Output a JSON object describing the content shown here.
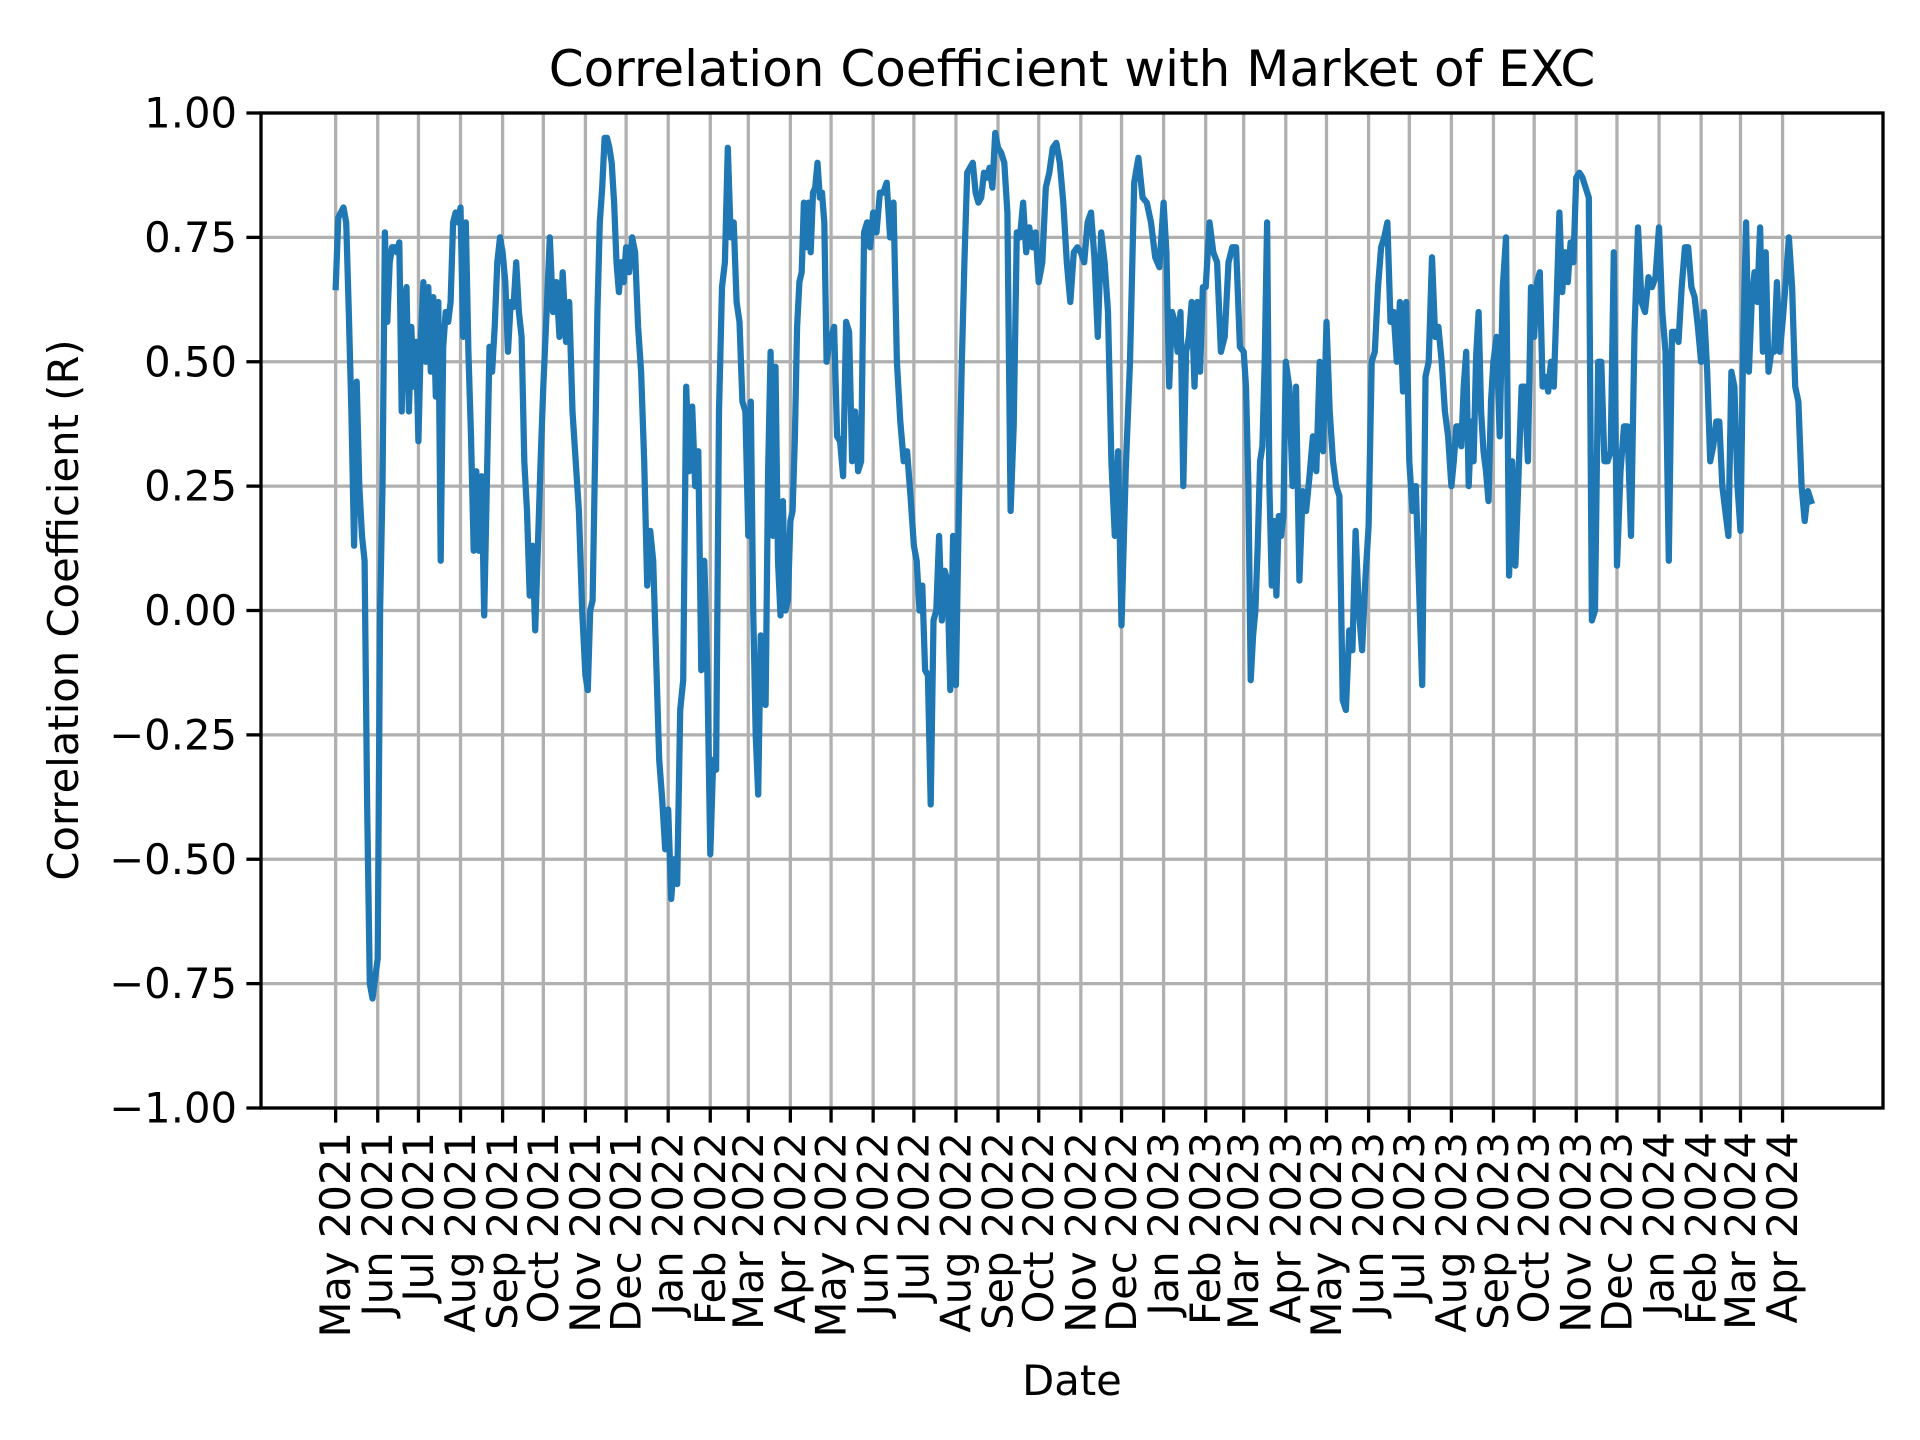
{
  "chart_data": {
    "type": "line",
    "title": "Correlation Coefficient with Market of EXC",
    "xlabel": "Date",
    "ylabel": "Correlation Coefficient (R)",
    "xlim": [
      "2021-03-07",
      "2024-06-14"
    ],
    "ylim": [
      -1.0,
      1.0
    ],
    "grid": true,
    "line_color": "#1f77b4",
    "grid_color": "#b0b0b0",
    "y_ticks": [
      {
        "value": 1.0,
        "label": "1.00"
      },
      {
        "value": 0.75,
        "label": "0.75"
      },
      {
        "value": 0.5,
        "label": "0.50"
      },
      {
        "value": 0.25,
        "label": "0.25"
      },
      {
        "value": 0.0,
        "label": "0.00"
      },
      {
        "value": -0.25,
        "label": "−0.25"
      },
      {
        "value": -0.5,
        "label": "−0.50"
      },
      {
        "value": -0.75,
        "label": "−0.75"
      },
      {
        "value": -1.0,
        "label": "−1.00"
      }
    ],
    "x_ticks": [
      {
        "date": "2021-05-01",
        "label": "May 2021"
      },
      {
        "date": "2021-06-01",
        "label": "Jun 2021"
      },
      {
        "date": "2021-07-01",
        "label": "Jul 2021"
      },
      {
        "date": "2021-08-01",
        "label": "Aug 2021"
      },
      {
        "date": "2021-09-01",
        "label": "Sep 2021"
      },
      {
        "date": "2021-10-01",
        "label": "Oct 2021"
      },
      {
        "date": "2021-11-01",
        "label": "Nov 2021"
      },
      {
        "date": "2021-12-01",
        "label": "Dec 2021"
      },
      {
        "date": "2022-01-01",
        "label": "Jan 2022"
      },
      {
        "date": "2022-02-01",
        "label": "Feb 2022"
      },
      {
        "date": "2022-03-01",
        "label": "Mar 2022"
      },
      {
        "date": "2022-04-01",
        "label": "Apr 2022"
      },
      {
        "date": "2022-05-01",
        "label": "May 2022"
      },
      {
        "date": "2022-06-01",
        "label": "Jun 2022"
      },
      {
        "date": "2022-07-01",
        "label": "Jul 2022"
      },
      {
        "date": "2022-08-01",
        "label": "Aug 2022"
      },
      {
        "date": "2022-09-01",
        "label": "Sep 2022"
      },
      {
        "date": "2022-10-01",
        "label": "Oct 2022"
      },
      {
        "date": "2022-11-01",
        "label": "Nov 2022"
      },
      {
        "date": "2022-12-01",
        "label": "Dec 2022"
      },
      {
        "date": "2023-01-01",
        "label": "Jan 2023"
      },
      {
        "date": "2023-02-01",
        "label": "Feb 2023"
      },
      {
        "date": "2023-03-01",
        "label": "Mar 2023"
      },
      {
        "date": "2023-04-01",
        "label": "Apr 2023"
      },
      {
        "date": "2023-05-01",
        "label": "May 2023"
      },
      {
        "date": "2023-06-01",
        "label": "Jun 2023"
      },
      {
        "date": "2023-07-01",
        "label": "Jul 2023"
      },
      {
        "date": "2023-08-01",
        "label": "Aug 2023"
      },
      {
        "date": "2023-09-01",
        "label": "Sep 2023"
      },
      {
        "date": "2023-10-01",
        "label": "Oct 2023"
      },
      {
        "date": "2023-11-01",
        "label": "Nov 2023"
      },
      {
        "date": "2023-12-01",
        "label": "Dec 2023"
      },
      {
        "date": "2024-01-01",
        "label": "Jan 2024"
      },
      {
        "date": "2024-02-01",
        "label": "Feb 2024"
      },
      {
        "date": "2024-03-01",
        "label": "Mar 2024"
      },
      {
        "date": "2024-04-01",
        "label": "Apr 2024"
      }
    ],
    "series": [
      {
        "last_date": "2024-04-22",
        "monthly_values": [
          {
            "month": "2021-05",
            "values": [
              0.65,
              0.79,
              0.8,
              0.81,
              0.78,
              0.6,
              0.4,
              0.13,
              0.46,
              0.25,
              0.15,
              0.1,
              -0.4,
              -0.75,
              -0.78,
              -0.74
            ]
          },
          {
            "month": "2021-06",
            "values": [
              -0.7,
              0.0,
              0.25,
              0.76,
              0.58,
              0.7,
              0.73,
              0.73,
              0.72,
              0.74,
              0.4,
              0.6,
              0.65,
              0.4,
              0.57,
              0.45,
              0.54
            ]
          },
          {
            "month": "2021-07",
            "values": [
              0.34,
              0.55,
              0.66,
              0.5,
              0.65,
              0.48,
              0.63,
              0.43,
              0.62,
              0.1,
              0.53,
              0.6,
              0.58,
              0.62,
              0.78,
              0.8,
              0.78
            ]
          },
          {
            "month": "2021-08",
            "values": [
              0.81,
              0.55,
              0.78,
              0.52,
              0.35,
              0.12,
              0.28,
              0.12,
              0.27,
              -0.01,
              0.25,
              0.53,
              0.48,
              0.57,
              0.7,
              0.75
            ]
          },
          {
            "month": "2021-09",
            "values": [
              0.72,
              0.66,
              0.52,
              0.62,
              0.61,
              0.7,
              0.6,
              0.55,
              0.3,
              0.2,
              0.03,
              0.13,
              -0.04,
              0.13,
              0.3
            ]
          },
          {
            "month": "2021-10",
            "values": [
              0.45,
              0.6,
              0.75,
              0.6,
              0.66,
              0.55,
              0.68,
              0.54,
              0.62,
              0.4,
              0.3,
              0.2,
              0.0
            ]
          },
          {
            "month": "2021-11",
            "values": [
              -0.13,
              -0.16,
              0.0,
              0.02,
              0.3,
              0.6,
              0.78,
              0.85,
              0.95,
              0.95,
              0.93,
              0.9,
              0.82,
              0.7,
              0.64,
              0.7,
              0.66
            ]
          },
          {
            "month": "2021-12",
            "values": [
              0.73,
              0.68,
              0.75,
              0.72,
              0.57,
              0.48,
              0.3,
              0.05,
              0.16,
              0.1,
              -0.1,
              -0.3,
              -0.38,
              -0.48
            ]
          },
          {
            "month": "2022-01",
            "values": [
              -0.4,
              -0.58,
              -0.5,
              -0.55,
              -0.2,
              -0.14,
              0.45,
              0.28,
              0.41,
              0.25,
              0.32,
              -0.12,
              0.1,
              -0.12
            ]
          },
          {
            "month": "2022-02",
            "values": [
              -0.49,
              -0.3,
              -0.32,
              0.4,
              0.65,
              0.7,
              0.93,
              0.75,
              0.78,
              0.62,
              0.58,
              0.42,
              0.4
            ]
          },
          {
            "month": "2022-03",
            "values": [
              0.15,
              0.42,
              0.0,
              -0.25,
              -0.37,
              -0.05,
              -0.08,
              -0.19,
              0.28,
              0.52,
              0.15,
              0.49,
              0.1,
              -0.01,
              0.22,
              0.0,
              0.02
            ]
          },
          {
            "month": "2022-04",
            "values": [
              0.18,
              0.2,
              0.35,
              0.57,
              0.66,
              0.68,
              0.82,
              0.73,
              0.82,
              0.72,
              0.84,
              0.85,
              0.9,
              0.83,
              0.84,
              0.78,
              0.5,
              0.53
            ]
          },
          {
            "month": "2022-05",
            "values": [
              0.55,
              0.57,
              0.35,
              0.34,
              0.27,
              0.58,
              0.56,
              0.3,
              0.4,
              0.28,
              0.3,
              0.76,
              0.78,
              0.73
            ]
          },
          {
            "month": "2022-06",
            "values": [
              0.8,
              0.76,
              0.84,
              0.84,
              0.86,
              0.75,
              0.82,
              0.5,
              0.38,
              0.3,
              0.32,
              0.23
            ]
          },
          {
            "month": "2022-07",
            "values": [
              0.13,
              0.1,
              0.0,
              0.05,
              -0.12,
              -0.13,
              -0.39,
              -0.02,
              0.0,
              0.15,
              -0.02,
              0.08,
              0.06,
              -0.16,
              0.15
            ]
          },
          {
            "month": "2022-08",
            "values": [
              -0.15,
              0.2,
              0.48,
              0.7,
              0.88,
              0.89,
              0.9,
              0.84,
              0.82,
              0.83,
              0.88,
              0.87,
              0.89,
              0.85,
              0.96
            ]
          },
          {
            "month": "2022-09",
            "values": [
              0.93,
              0.92,
              0.9,
              0.8,
              0.2,
              0.37,
              0.76,
              0.75,
              0.82,
              0.72,
              0.77,
              0.73,
              0.76
            ]
          },
          {
            "month": "2022-10",
            "values": [
              0.66,
              0.7,
              0.85,
              0.88,
              0.93,
              0.94,
              0.9,
              0.82,
              0.7,
              0.62,
              0.72,
              0.73
            ]
          },
          {
            "month": "2022-11",
            "values": [
              0.72,
              0.7,
              0.78,
              0.8,
              0.71,
              0.55,
              0.76,
              0.7,
              0.6,
              0.3,
              0.15,
              0.32
            ]
          },
          {
            "month": "2022-12",
            "values": [
              -0.03,
              0.28,
              0.5,
              0.86,
              0.91,
              0.83,
              0.82,
              0.78,
              0.71,
              0.69
            ]
          },
          {
            "month": "2023-01",
            "values": [
              0.82,
              0.72,
              0.45,
              0.6,
              0.58,
              0.52,
              0.6,
              0.25,
              0.52,
              0.55,
              0.62,
              0.45,
              0.62,
              0.48,
              0.65
            ]
          },
          {
            "month": "2023-02",
            "values": [
              0.65,
              0.78,
              0.72,
              0.7,
              0.52,
              0.55,
              0.7,
              0.73,
              0.73,
              0.53
            ]
          },
          {
            "month": "2023-03",
            "values": [
              0.52,
              0.45,
              0.25,
              -0.14,
              -0.05,
              0.0,
              0.13,
              0.3,
              0.33,
              0.5,
              0.78,
              0.25,
              0.05,
              0.18,
              0.03,
              0.19,
              0.15,
              0.19
            ]
          },
          {
            "month": "2023-04",
            "values": [
              0.5,
              0.45,
              0.25,
              0.45,
              0.06,
              0.24,
              0.2,
              0.27,
              0.35,
              0.28,
              0.5,
              0.32
            ]
          },
          {
            "month": "2023-05",
            "values": [
              0.58,
              0.4,
              0.3,
              0.25,
              0.23,
              -0.18,
              -0.2,
              -0.04,
              -0.08,
              0.16,
              0.0,
              -0.08,
              0.06
            ]
          },
          {
            "month": "2023-06",
            "values": [
              0.17,
              0.5,
              0.52,
              0.65,
              0.73,
              0.75,
              0.78,
              0.58,
              0.6,
              0.5,
              0.62,
              0.44,
              0.62
            ]
          },
          {
            "month": "2023-07",
            "values": [
              0.3,
              0.2,
              0.25,
              0.05,
              -0.15,
              0.47,
              0.5,
              0.71,
              0.55,
              0.57,
              0.5,
              0.4,
              0.35
            ]
          },
          {
            "month": "2023-08",
            "values": [
              0.25,
              0.3,
              0.37,
              0.37,
              0.33,
              0.45,
              0.52,
              0.25,
              0.38,
              0.3,
              0.51,
              0.6,
              0.4,
              0.32,
              0.28,
              0.22,
              0.42
            ]
          },
          {
            "month": "2023-09",
            "values": [
              0.5,
              0.55,
              0.35,
              0.65,
              0.75,
              0.07,
              0.3,
              0.09,
              0.27,
              0.45,
              0.45,
              0.3,
              0.65
            ]
          },
          {
            "month": "2023-10",
            "values": [
              0.55,
              0.66,
              0.68,
              0.45,
              0.47,
              0.44,
              0.5,
              0.45,
              0.62,
              0.8,
              0.64,
              0.72,
              0.66,
              0.74,
              0.7
            ]
          },
          {
            "month": "2023-11",
            "values": [
              0.87,
              0.88,
              0.87,
              0.85,
              0.83,
              -0.02,
              0.0,
              0.5,
              0.5,
              0.3,
              0.3,
              0.32,
              0.72
            ]
          },
          {
            "month": "2023-12",
            "values": [
              0.09,
              0.28,
              0.37,
              0.37,
              0.15,
              0.56,
              0.77,
              0.62,
              0.6,
              0.67,
              0.65,
              0.67
            ]
          },
          {
            "month": "2024-01",
            "values": [
              0.77,
              0.6,
              0.52,
              0.1,
              0.56,
              0.56,
              0.54,
              0.65,
              0.73,
              0.73,
              0.65,
              0.63,
              0.57
            ]
          },
          {
            "month": "2024-02",
            "values": [
              0.5,
              0.6,
              0.48,
              0.3,
              0.33,
              0.38,
              0.38,
              0.25,
              0.2,
              0.15,
              0.48,
              0.45,
              0.25
            ]
          },
          {
            "month": "2024-03",
            "values": [
              0.16,
              0.55,
              0.78,
              0.48,
              0.62,
              0.68,
              0.62,
              0.77,
              0.52,
              0.72,
              0.48,
              0.52,
              0.52,
              0.66,
              0.52
            ]
          },
          {
            "month": "2024-04",
            "values": [
              0.58,
              0.66,
              0.75,
              0.65,
              0.45,
              0.42,
              0.25,
              0.18,
              0.24,
              0.22
            ]
          }
        ]
      }
    ]
  }
}
